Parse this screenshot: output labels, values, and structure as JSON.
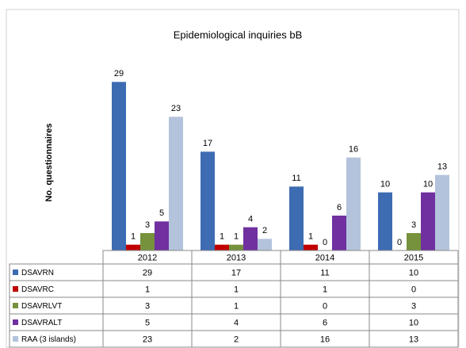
{
  "chart_data": {
    "type": "bar",
    "title": "Epidemiological inquiries  bB",
    "y_label": "No. questionnaires",
    "categories": [
      "2012",
      "2013",
      "2014",
      "2015"
    ],
    "series": [
      {
        "name": "DSAVRN",
        "color": "#3d6cb3",
        "values": [
          29,
          17,
          11,
          10
        ]
      },
      {
        "name": "DSAVRC",
        "color": "#c00000",
        "values": [
          1,
          1,
          1,
          0
        ]
      },
      {
        "name": "DSAVRLVT",
        "color": "#76923c",
        "values": [
          3,
          1,
          0,
          3
        ]
      },
      {
        "name": "DSAVRALT",
        "color": "#7030a0",
        "values": [
          5,
          4,
          6,
          10
        ]
      },
      {
        "name": "RAA (3 islands)",
        "color": "#b3c3dc",
        "values": [
          23,
          2,
          16,
          13
        ]
      }
    ],
    "ylim": [
      0,
      30
    ],
    "data_table": true
  }
}
